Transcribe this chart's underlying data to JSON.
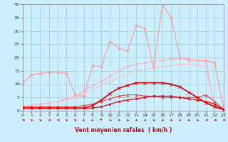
{
  "series": [
    {
      "name": "spiky_light_pink",
      "y": [
        10.5,
        13.5,
        14.0,
        14.5,
        14.5,
        14.0,
        6.0,
        5.5,
        17.0,
        16.5,
        26.0,
        23.5,
        22.5,
        32.0,
        31.0,
        16.0,
        40.0,
        35.0,
        20.0,
        19.0,
        19.0,
        19.0,
        18.0,
        1.0
      ],
      "color": "#ff9999",
      "marker": "o",
      "markersize": 1.8,
      "linewidth": 0.8,
      "zorder": 2
    },
    {
      "name": "rising_light_pink",
      "y": [
        1.5,
        2.0,
        2.5,
        3.0,
        3.5,
        4.5,
        5.5,
        7.5,
        9.5,
        11.0,
        13.0,
        15.0,
        16.5,
        17.5,
        18.0,
        18.5,
        19.0,
        19.5,
        19.5,
        19.5,
        19.0,
        18.5,
        1.0,
        0.5
      ],
      "color": "#ffaaaa",
      "marker": "o",
      "markersize": 1.5,
      "linewidth": 0.7,
      "zorder": 2
    },
    {
      "name": "medium_rising_light",
      "y": [
        1.5,
        2.0,
        2.5,
        3.0,
        3.5,
        4.0,
        5.0,
        6.5,
        8.0,
        9.5,
        11.0,
        12.5,
        14.0,
        15.0,
        15.5,
        16.0,
        16.5,
        17.0,
        17.5,
        17.5,
        17.0,
        16.5,
        1.0,
        0.5
      ],
      "color": "#ffbbbb",
      "marker": null,
      "markersize": 0,
      "linewidth": 0.7,
      "zorder": 2
    },
    {
      "name": "bell_dark_red",
      "y": [
        1.0,
        1.0,
        1.0,
        1.0,
        1.0,
        1.0,
        1.0,
        1.0,
        2.0,
        4.0,
        6.5,
        8.5,
        9.5,
        10.5,
        10.5,
        10.5,
        10.5,
        10.0,
        9.0,
        7.0,
        5.0,
        3.0,
        1.5,
        0.5
      ],
      "color": "#dd0000",
      "marker": "x",
      "markersize": 2.5,
      "linewidth": 1.2,
      "zorder": 4
    },
    {
      "name": "small_humps_medium_red",
      "y": [
        1.5,
        1.5,
        1.5,
        1.5,
        1.5,
        1.5,
        1.5,
        2.0,
        2.5,
        3.5,
        4.5,
        5.5,
        6.0,
        6.0,
        5.5,
        5.5,
        5.0,
        5.0,
        5.0,
        5.0,
        5.0,
        6.0,
        3.5,
        0.5
      ],
      "color": "#ee4444",
      "marker": "^",
      "markersize": 2.0,
      "linewidth": 0.8,
      "zorder": 3
    },
    {
      "name": "flat_dark_red",
      "y": [
        1.0,
        1.0,
        1.0,
        1.0,
        1.0,
        1.0,
        1.0,
        1.0,
        1.0,
        1.5,
        2.5,
        3.5,
        4.0,
        4.5,
        5.0,
        5.5,
        5.5,
        5.5,
        5.0,
        4.5,
        4.0,
        3.5,
        2.5,
        0.5
      ],
      "color": "#cc0000",
      "marker": "x",
      "markersize": 2.0,
      "linewidth": 0.8,
      "zorder": 3
    }
  ],
  "wind_dirs": [
    270,
    200,
    200,
    270,
    270,
    200,
    200,
    320,
    320,
    10,
    45,
    45,
    45,
    45,
    45,
    45,
    45,
    45,
    45,
    45,
    45,
    270,
    270,
    270
  ],
  "xlim": [
    0,
    23
  ],
  "ylim": [
    0,
    40
  ],
  "yticks": [
    0,
    5,
    10,
    15,
    20,
    25,
    30,
    35,
    40
  ],
  "xticks": [
    0,
    1,
    2,
    3,
    4,
    5,
    6,
    7,
    8,
    9,
    10,
    11,
    12,
    13,
    14,
    15,
    16,
    17,
    18,
    19,
    20,
    21,
    22,
    23
  ],
  "xlabel": "Vent moyen/en rafales  ( km/h )",
  "bg_color": "#cceeff",
  "grid_color": "#99cccc",
  "axis_color": "#888888",
  "label_color": "#cc0000",
  "arrow_color": "#cc0000"
}
